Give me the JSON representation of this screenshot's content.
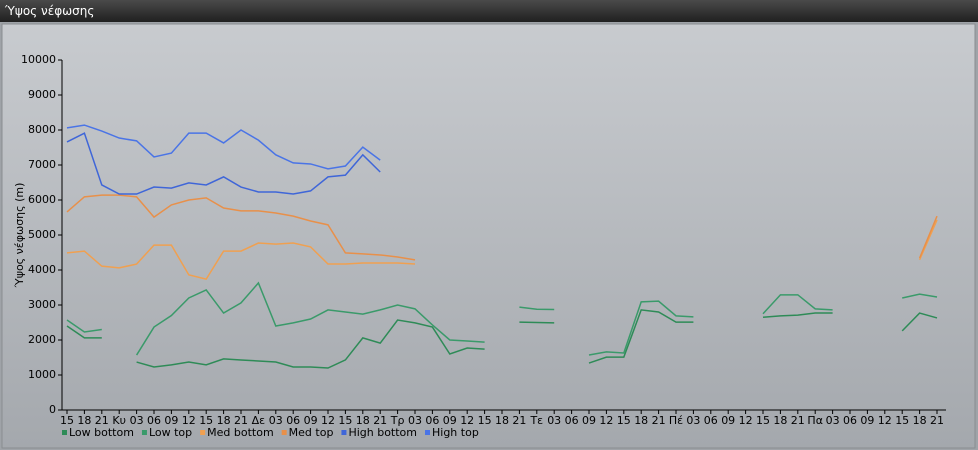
{
  "window": {
    "title": "Ύψος νέφωσης"
  },
  "chart_data": {
    "type": "line",
    "y_label": "Ύψος νέφωσης (m)",
    "categories": [
      "15",
      "18",
      "21",
      "Κυ",
      "03",
      "06",
      "09",
      "12",
      "15",
      "18",
      "21",
      "Δε",
      "03",
      "06",
      "09",
      "12",
      "15",
      "18",
      "21",
      "Τρ",
      "03",
      "06",
      "09",
      "12",
      "15",
      "18",
      "21",
      "Τε",
      "03",
      "06",
      "09",
      "12",
      "15",
      "18",
      "21",
      "Πέ",
      "03",
      "06",
      "09",
      "12",
      "15",
      "18",
      "21",
      "Πα",
      "03",
      "06",
      "09",
      "12",
      "15",
      "18",
      "21"
    ],
    "ylim": [
      0,
      10000
    ],
    "yticks": [
      0,
      1000,
      2000,
      3000,
      4000,
      5000,
      6000,
      7000,
      8000,
      9000,
      10000
    ],
    "series": [
      {
        "name": "Low bottom",
        "color": "#2e8b57",
        "values": [
          2400,
          2060,
          2060,
          null,
          1370,
          1230,
          1290,
          1370,
          1290,
          1460,
          1430,
          1400,
          1370,
          1230,
          1230,
          1200,
          1430,
          2060,
          1910,
          2570,
          2490,
          2370,
          1600,
          1770,
          1740,
          null,
          2510,
          2500,
          2490,
          null,
          1340,
          1510,
          1510,
          2860,
          2800,
          2510,
          2510,
          null,
          null,
          null,
          2650,
          2690,
          2710,
          2770,
          2770,
          null,
          null,
          null,
          2260,
          2770,
          2630
        ]
      },
      {
        "name": "Low top",
        "color": "#3a9a6a",
        "values": [
          2570,
          2230,
          2300,
          null,
          1570,
          2370,
          2700,
          3200,
          3430,
          2770,
          3060,
          3630,
          2400,
          2490,
          2600,
          2860,
          2800,
          2740,
          2860,
          3000,
          2890,
          2430,
          2000,
          1970,
          1940,
          null,
          2940,
          2880,
          2870,
          null,
          1570,
          1660,
          1630,
          3090,
          3110,
          2690,
          2660,
          null,
          null,
          null,
          2750,
          3290,
          3290,
          2890,
          2860,
          null,
          null,
          null,
          3200,
          3310,
          3230
        ]
      },
      {
        "name": "Med bottom",
        "color": "#f0a050",
        "values": [
          4490,
          4540,
          4110,
          4060,
          4170,
          4710,
          4710,
          3860,
          3740,
          4540,
          4540,
          4770,
          4740,
          4770,
          4660,
          4170,
          4170,
          4200,
          4200,
          4200,
          4170,
          null,
          null,
          null,
          null,
          null,
          null,
          null,
          null,
          null,
          null,
          null,
          null,
          null,
          null,
          null,
          null,
          null,
          null,
          null,
          null,
          null,
          null,
          null,
          null,
          null,
          null,
          null,
          null,
          4290,
          5430
        ]
      },
      {
        "name": "Med top",
        "color": "#e8904a",
        "values": [
          5660,
          6090,
          6140,
          6140,
          6090,
          5510,
          5860,
          6000,
          6060,
          5770,
          5690,
          5690,
          5630,
          5540,
          5400,
          5290,
          4490,
          4460,
          4430,
          4370,
          4290,
          null,
          null,
          null,
          null,
          null,
          null,
          null,
          null,
          null,
          null,
          null,
          null,
          null,
          null,
          null,
          null,
          null,
          null,
          null,
          null,
          null,
          null,
          null,
          null,
          null,
          null,
          null,
          null,
          4340,
          5540
        ]
      },
      {
        "name": "High bottom",
        "color": "#3f66d8",
        "values": [
          7660,
          7910,
          6430,
          6170,
          6170,
          6370,
          6340,
          6490,
          6430,
          6660,
          6370,
          6230,
          6230,
          6170,
          6260,
          6660,
          6710,
          7290,
          6800,
          null,
          null,
          null,
          null,
          null,
          null,
          null,
          null,
          null,
          null,
          null,
          null,
          null,
          null,
          null,
          null,
          null,
          null,
          null,
          null,
          null,
          null,
          null,
          null,
          null,
          null,
          null,
          null,
          null,
          null,
          null,
          null
        ]
      },
      {
        "name": "High top",
        "color": "#4a74e6",
        "values": [
          8060,
          8140,
          7970,
          7770,
          7690,
          7230,
          7340,
          7910,
          7910,
          7630,
          8000,
          7710,
          7290,
          7060,
          7030,
          6890,
          6970,
          7510,
          7140,
          null,
          null,
          null,
          null,
          null,
          null,
          null,
          null,
          null,
          null,
          null,
          null,
          null,
          null,
          null,
          null,
          null,
          null,
          null,
          null,
          null,
          null,
          null,
          null,
          null,
          null,
          null,
          null,
          null,
          null,
          null,
          null
        ]
      }
    ]
  }
}
